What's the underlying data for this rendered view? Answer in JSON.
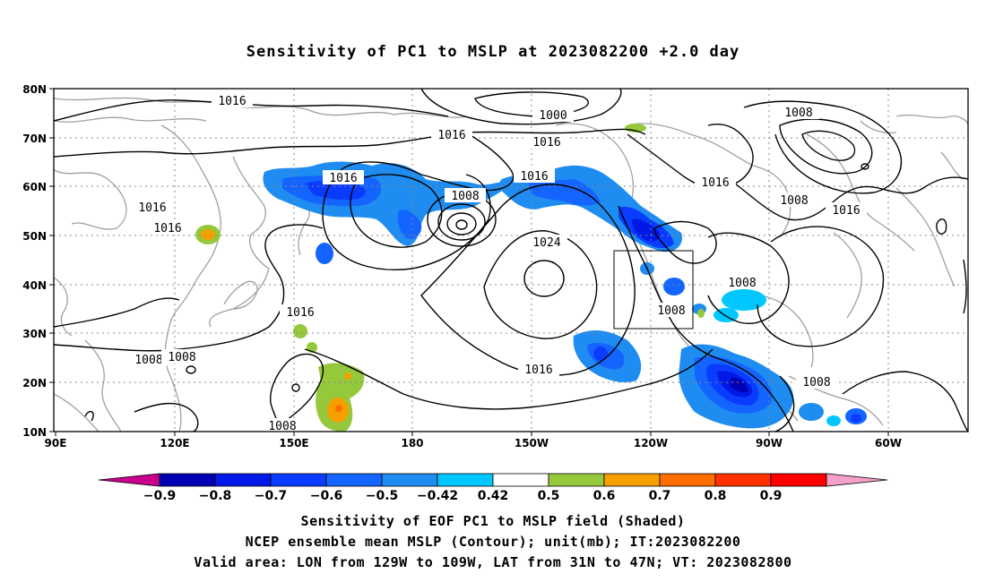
{
  "title": "Sensitivity of PC1 to MSLP at 2023082200 +2.0 day",
  "axes": {
    "lat_labels": [
      "80N",
      "70N",
      "60N",
      "50N",
      "40N",
      "30N",
      "20N",
      "10N"
    ],
    "lon_labels": [
      "90E",
      "120E",
      "150E",
      "180",
      "150W",
      "120W",
      "90W",
      "60W"
    ]
  },
  "colorbar": {
    "labels": [
      "-0.9",
      "-0.8",
      "-0.7",
      "-0.6",
      "-0.5",
      "-0.42",
      "0.42",
      "0.5",
      "0.6",
      "0.7",
      "0.8",
      "0.9"
    ],
    "colors": [
      "#c8008c",
      "#0000b4",
      "#0019e6",
      "#0a3cff",
      "#1464ff",
      "#1e8cf0",
      "#00c8ff",
      "#ffffff",
      "#96c83c",
      "#f5a000",
      "#ff6e00",
      "#ff3200",
      "#ff0000",
      "#f5a0c8"
    ]
  },
  "contours": {
    "labels": [
      "1016",
      "1000",
      "1016",
      "1016",
      "1008",
      "1016",
      "1016",
      "1016",
      "1008",
      "1016",
      "1016",
      "1008",
      "1016",
      "1016",
      "1024",
      "1008",
      "1008",
      "1016",
      "1008",
      "1008",
      "1008",
      "1008"
    ]
  },
  "valid_area": {
    "lon_range": "129W to 109W",
    "lat_range": "31N to 47N"
  },
  "captions": {
    "line1": "Sensitivity of EOF PC1 to MSLP field (Shaded)",
    "line2": "NCEP ensemble mean MSLP (Contour); unit(mb); IT:2023082200",
    "line3": "Valid area: LON from 129W to 109W, LAT from 31N to 47N; VT: 2023082800"
  }
}
